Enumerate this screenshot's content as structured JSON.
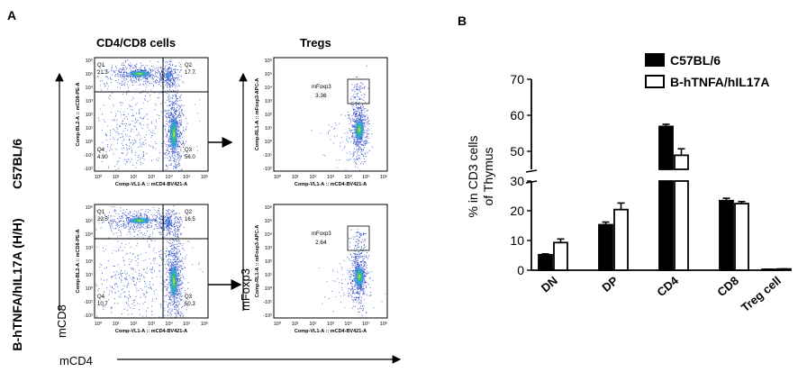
{
  "panel_a": {
    "label": "A",
    "col_titles": [
      "CD4/CD8 cells",
      "Tregs"
    ],
    "row_labels": [
      "C57BL/6",
      "B-hTNFA/hIL17A (H/H)"
    ],
    "y_arrow_label": "mCD8",
    "x_arrow_label": "mCD4",
    "foxp3_arrow_label": "mFoxp3",
    "cd4cd8_x_axis": "Comp-VL1-A :: mCD4-BV421-A",
    "cd4cd8_y_axis": "Comp-BL2-A :: mCD8-PE-A",
    "treg_x_axis": "Comp-VL1-A :: mCD4-BV421-A",
    "treg_y_axis": "Comp-RL1-A :: mFoxp3-APC-A",
    "tick_labels": [
      "10⁴",
      "10³",
      "10²",
      "10¹",
      "10⁰",
      "-10¹",
      "-10²"
    ],
    "x_tick_labels": [
      "10⁰",
      "10¹",
      "10²",
      "10³",
      "10⁴",
      "10⁵",
      "10⁶"
    ],
    "top_tick": "10⁶",
    "second_tick": "10⁵",
    "quadrants": [
      {
        "Q1": "21.3",
        "Q2": "17.7",
        "Q3": "56.0",
        "Q4": "4.90"
      },
      {
        "Q1": "22.5",
        "Q2": "16.5",
        "Q3": "50.3",
        "Q4": "10.7"
      }
    ],
    "quadrant_names": [
      "Q1",
      "Q2",
      "Q3",
      "Q4"
    ],
    "treg_gate_label": "mFoxp3",
    "treg_gate_values": [
      "3.36",
      "2.64"
    ]
  },
  "panel_b": {
    "label": "B"
  },
  "chart_data": {
    "type": "bar",
    "categories": [
      "DN",
      "DP",
      "CD4",
      "CD8",
      "Treg cell"
    ],
    "series": [
      {
        "name": "C57BL/6",
        "values": [
          5.2,
          15.3,
          56.9,
          23.4,
          0.3
        ],
        "errors": [
          0.3,
          0.9,
          0.6,
          0.8,
          0.05
        ]
      },
      {
        "name": "B-hTNFA/hIL17A",
        "values": [
          9.3,
          20.4,
          48.9,
          22.4,
          0.4
        ],
        "errors": [
          1.2,
          2.2,
          1.8,
          0.7,
          0.05
        ]
      }
    ],
    "ylabel": "% in CD3 cells\nof  Thymus",
    "ylabel_lines": [
      "% in CD3 cells",
      "of  Thymus"
    ],
    "y_ticks": [
      "0",
      "10",
      "20",
      "30",
      "50",
      "60",
      "70"
    ],
    "y_break": [
      30,
      45
    ],
    "ylim": [
      0,
      70
    ],
    "legend_position": "top-right",
    "colors": {
      "C57BL/6": "#000000",
      "B-hTNFA/hIL17A": "#ffffff"
    }
  }
}
